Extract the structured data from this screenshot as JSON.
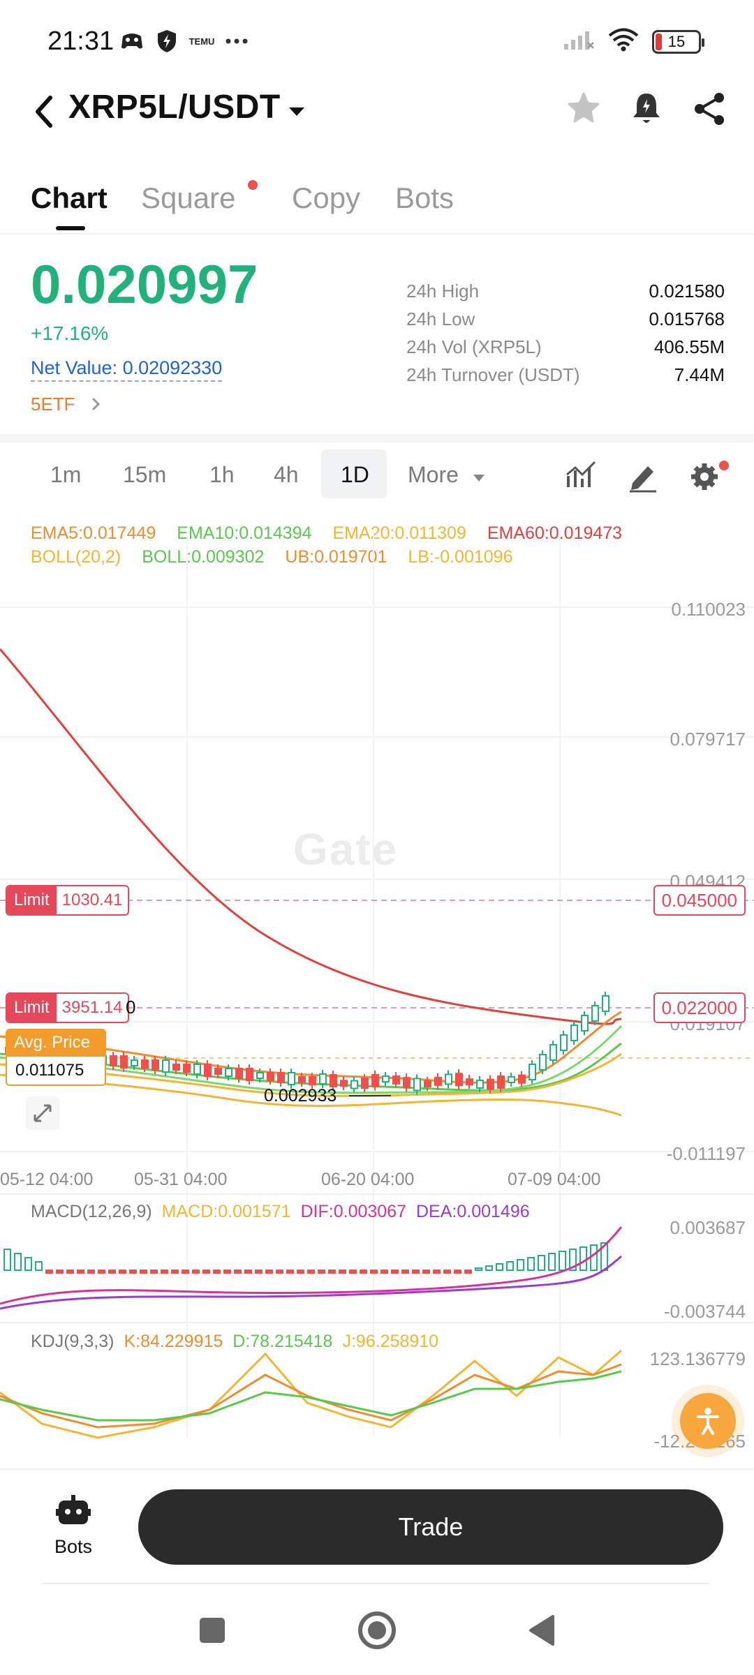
{
  "status_bar": {
    "time": "21:31",
    "battery": "15",
    "left_icons": [
      "game-icon",
      "shield-bolt-icon",
      "temu-icon",
      "more-dots-icon"
    ],
    "right_icons": [
      "signal-icon",
      "wifi-icon",
      "battery-icon"
    ],
    "temu_text": "TEMU"
  },
  "header": {
    "pair": "XRP5L/USDT"
  },
  "tabs": [
    "Chart",
    "Square",
    "Copy",
    "Bots"
  ],
  "price": {
    "last": "0.020997",
    "change": "+17.16%",
    "net_value": "Net Value: 0.02092330",
    "etf": "5ETF",
    "stats": [
      {
        "k": "24h High",
        "v": "0.021580"
      },
      {
        "k": "24h Low",
        "v": "0.015768"
      },
      {
        "k": "24h Vol (XRP5L)",
        "v": "406.55M"
      },
      {
        "k": "24h Turnover (USDT)",
        "v": "7.44M"
      }
    ]
  },
  "timeframes": [
    "1m",
    "15m",
    "1h",
    "4h",
    "1D",
    "More"
  ],
  "active_timeframe": "1D",
  "legend": {
    "line1": [
      {
        "text": "EMA5:0.017449",
        "color": "#f08c2e"
      },
      {
        "text": "EMA10:0.014394",
        "color": "#58c94a"
      },
      {
        "text": "EMA20:0.011309",
        "color": "#f2b632"
      },
      {
        "text": "EMA60:0.019473",
        "color": "#e0413b"
      }
    ],
    "line2": [
      {
        "text": "BOLL(20,2)",
        "color": "#f2b632"
      },
      {
        "text": "BOLL:0.009302",
        "color": "#58c94a"
      },
      {
        "text": "UB:0.019701",
        "color": "#f08c2e"
      },
      {
        "text": "LB:-0.001096",
        "color": "#f2b632"
      }
    ]
  },
  "main_chart": {
    "y_labels": [
      "0.110023",
      "0.079717",
      "0.049412",
      "0.019107",
      "-0.011197"
    ],
    "x_labels": [
      "05-12 04:00",
      "05-31 04:00",
      "06-20 04:00",
      "07-09 04:00"
    ],
    "watermark": "Gate",
    "limit_orders": [
      {
        "label": "Limit",
        "qty": "1030.41",
        "price": "0.045000"
      },
      {
        "label": "Limit",
        "qty": "3951.14",
        "price": "0.022000"
      }
    ],
    "limit_trailing": "0",
    "avg_price_label": "Avg. Price",
    "avg_price": "0.011075",
    "low_marker": "0.002933"
  },
  "macd": {
    "title": "MACD(12,26,9)",
    "macd": "MACD:0.001571",
    "dif": "DIF:0.003067",
    "dea": "DEA:0.001496",
    "y_top": "0.003687",
    "y_bottom": "-0.003744",
    "colors": {
      "macd": "#f2b632",
      "dif": "#d6329c",
      "dea": "#9b3ccf"
    }
  },
  "kdj": {
    "title": "KDJ(9,3,3)",
    "k": "K:84.229915",
    "d": "D:78.215418",
    "j": "J:96.258910",
    "y_top": "123.136779",
    "y_bottom": "-12.251265",
    "colors": {
      "k": "#f08c2e",
      "d": "#58c94a",
      "j": "#f2b632"
    }
  },
  "bottom": {
    "bots_label": "Bots",
    "trade_label": "Trade"
  },
  "colors": {
    "up": "#21b27b",
    "down": "#f0504a",
    "accent": "#f39c2b",
    "limit": "#e5475b"
  }
}
